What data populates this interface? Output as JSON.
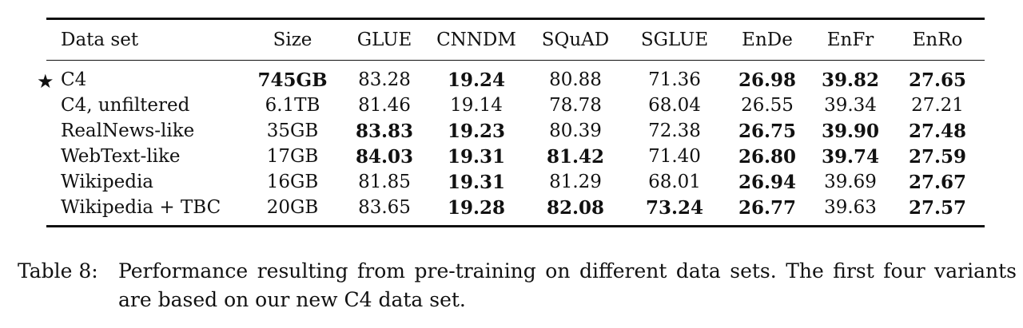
{
  "table": {
    "headers": [
      "Data set",
      "Size",
      "GLUE",
      "CNNDM",
      "SQuAD",
      "SGLUE",
      "EnDe",
      "EnFr",
      "EnRo"
    ],
    "rows": [
      {
        "name": "C4",
        "star": "★",
        "cells": [
          {
            "v": "745GB",
            "b": true
          },
          {
            "v": "83.28",
            "b": false
          },
          {
            "v": "19.24",
            "b": true
          },
          {
            "v": "80.88",
            "b": false
          },
          {
            "v": "71.36",
            "b": false
          },
          {
            "v": "26.98",
            "b": true
          },
          {
            "v": "39.82",
            "b": true
          },
          {
            "v": "27.65",
            "b": true
          }
        ]
      },
      {
        "name": "C4, unfiltered",
        "cells": [
          {
            "v": "6.1TB",
            "b": false
          },
          {
            "v": "81.46",
            "b": false
          },
          {
            "v": "19.14",
            "b": false
          },
          {
            "v": "78.78",
            "b": false
          },
          {
            "v": "68.04",
            "b": false
          },
          {
            "v": "26.55",
            "b": false
          },
          {
            "v": "39.34",
            "b": false
          },
          {
            "v": "27.21",
            "b": false
          }
        ]
      },
      {
        "name": "RealNews-like",
        "cells": [
          {
            "v": "35GB",
            "b": false
          },
          {
            "v": "83.83",
            "b": true
          },
          {
            "v": "19.23",
            "b": true
          },
          {
            "v": "80.39",
            "b": false
          },
          {
            "v": "72.38",
            "b": false
          },
          {
            "v": "26.75",
            "b": true
          },
          {
            "v": "39.90",
            "b": true
          },
          {
            "v": "27.48",
            "b": true
          }
        ]
      },
      {
        "name": "WebText-like",
        "cells": [
          {
            "v": "17GB",
            "b": false
          },
          {
            "v": "84.03",
            "b": true
          },
          {
            "v": "19.31",
            "b": true
          },
          {
            "v": "81.42",
            "b": true
          },
          {
            "v": "71.40",
            "b": false
          },
          {
            "v": "26.80",
            "b": true
          },
          {
            "v": "39.74",
            "b": true
          },
          {
            "v": "27.59",
            "b": true
          }
        ]
      },
      {
        "name": "Wikipedia",
        "cells": [
          {
            "v": "16GB",
            "b": false
          },
          {
            "v": "81.85",
            "b": false
          },
          {
            "v": "19.31",
            "b": true
          },
          {
            "v": "81.29",
            "b": false
          },
          {
            "v": "68.01",
            "b": false
          },
          {
            "v": "26.94",
            "b": true
          },
          {
            "v": "39.69",
            "b": false
          },
          {
            "v": "27.67",
            "b": true
          }
        ]
      },
      {
        "name": "Wikipedia + TBC",
        "cells": [
          {
            "v": "20GB",
            "b": false
          },
          {
            "v": "83.65",
            "b": false
          },
          {
            "v": "19.28",
            "b": true
          },
          {
            "v": "82.08",
            "b": true
          },
          {
            "v": "73.24",
            "b": true
          },
          {
            "v": "26.77",
            "b": true
          },
          {
            "v": "39.63",
            "b": false
          },
          {
            "v": "27.57",
            "b": true
          }
        ]
      }
    ]
  },
  "caption": {
    "label": "Table 8:",
    "text": "Performance resulting from pre-training on different data sets. The first four variants are based on our new C4 data set."
  }
}
